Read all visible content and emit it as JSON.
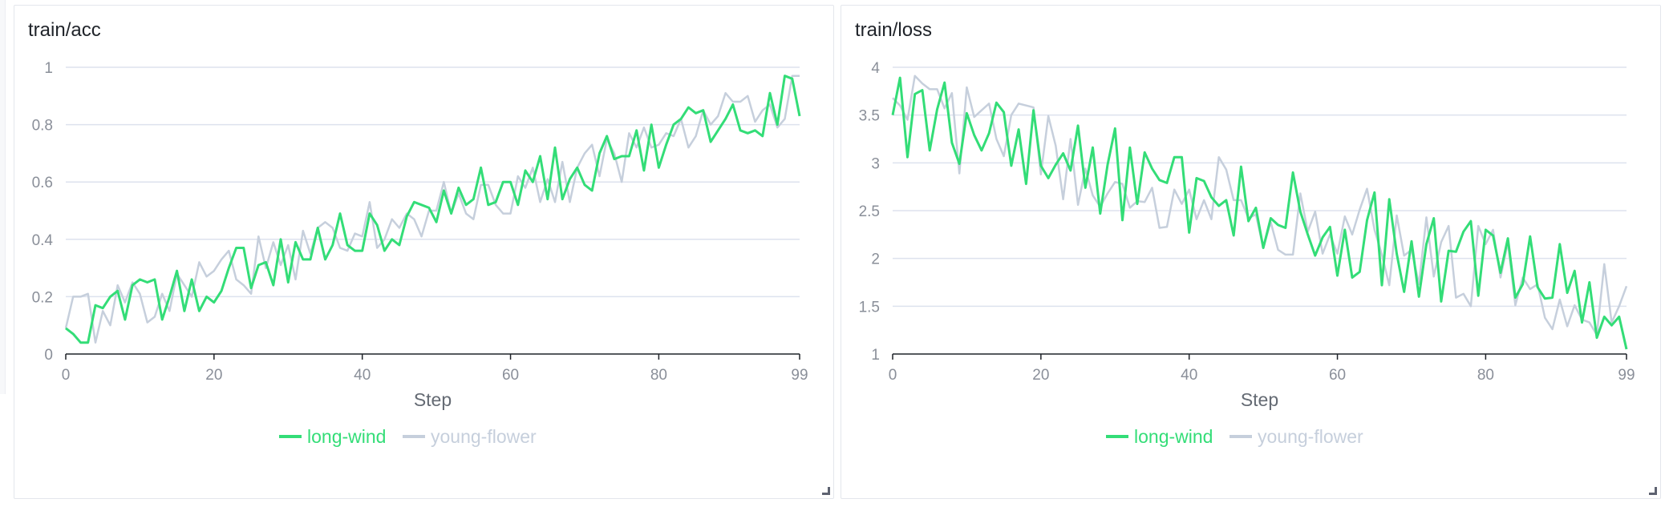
{
  "colors": {
    "long_wind": "#33dd77",
    "young_flower": "#c6cfdc",
    "grid": "#dde2ee",
    "axis": "#1f2329"
  },
  "chart_data": [
    {
      "type": "line",
      "title": "train/acc",
      "xlabel": "Step",
      "xlim": [
        0,
        99
      ],
      "ylim": [
        0,
        1
      ],
      "x_ticks": [
        0,
        20,
        40,
        60,
        80,
        99
      ],
      "y_ticks": [
        0,
        0.2,
        0.4,
        0.6,
        0.8,
        1
      ],
      "grid": true,
      "legend": "bottom-center",
      "series": [
        {
          "name": "long-wind",
          "color": "#33dd77",
          "values": [
            0.09,
            0.07,
            0.04,
            0.04,
            0.17,
            0.16,
            0.2,
            0.22,
            0.12,
            0.24,
            0.26,
            0.25,
            0.26,
            0.12,
            0.2,
            0.29,
            0.15,
            0.26,
            0.15,
            0.2,
            0.18,
            0.22,
            0.3,
            0.37,
            0.37,
            0.23,
            0.31,
            0.32,
            0.24,
            0.4,
            0.25,
            0.39,
            0.33,
            0.33,
            0.44,
            0.33,
            0.38,
            0.49,
            0.38,
            0.36,
            0.36,
            0.49,
            0.45,
            0.36,
            0.4,
            0.38,
            0.48,
            0.53,
            0.52,
            0.51,
            0.46,
            0.57,
            0.49,
            0.58,
            0.52,
            0.54,
            0.65,
            0.52,
            0.53,
            0.6,
            0.6,
            0.52,
            0.64,
            0.6,
            0.69,
            0.54,
            0.72,
            0.54,
            0.61,
            0.65,
            0.59,
            0.57,
            0.7,
            0.76,
            0.68,
            0.69,
            0.69,
            0.78,
            0.64,
            0.8,
            0.65,
            0.73,
            0.8,
            0.82,
            0.86,
            0.84,
            0.85,
            0.74,
            0.78,
            0.82,
            0.87,
            0.78,
            0.77,
            0.78,
            0.76,
            0.91,
            0.8,
            0.97,
            0.96,
            0.83
          ]
        },
        {
          "name": "young-flower",
          "color": "#c6cfdc",
          "values": [
            0.09,
            0.2,
            0.2,
            0.21,
            0.04,
            0.15,
            0.1,
            0.24,
            0.18,
            0.25,
            0.21,
            0.11,
            0.13,
            0.21,
            0.15,
            0.28,
            0.24,
            0.2,
            0.32,
            0.27,
            0.29,
            0.33,
            0.36,
            0.26,
            0.24,
            0.21,
            0.41,
            0.3,
            0.39,
            0.31,
            0.38,
            0.26,
            0.43,
            0.35,
            0.44,
            0.46,
            0.44,
            0.37,
            0.36,
            0.42,
            0.41,
            0.53,
            0.37,
            0.4,
            0.47,
            0.44,
            0.49,
            0.47,
            0.41,
            0.5,
            0.5,
            0.6,
            0.49,
            0.56,
            0.49,
            0.47,
            0.59,
            0.59,
            0.52,
            0.49,
            0.49,
            0.62,
            0.58,
            0.65,
            0.53,
            0.61,
            0.53,
            0.67,
            0.53,
            0.65,
            0.7,
            0.73,
            0.62,
            0.75,
            0.7,
            0.6,
            0.77,
            0.72,
            0.79,
            0.72,
            0.73,
            0.77,
            0.76,
            0.82,
            0.72,
            0.76,
            0.85,
            0.8,
            0.83,
            0.91,
            0.88,
            0.88,
            0.9,
            0.81,
            0.85,
            0.87,
            0.79,
            0.82,
            0.97,
            0.97
          ]
        }
      ]
    },
    {
      "type": "line",
      "title": "train/loss",
      "xlabel": "Step",
      "xlim": [
        0,
        99
      ],
      "ylim": [
        1,
        4
      ],
      "x_ticks": [
        0,
        20,
        40,
        60,
        80,
        99
      ],
      "y_ticks": [
        1,
        1.5,
        2,
        2.5,
        3,
        3.5,
        4
      ],
      "grid": true,
      "legend": "bottom-center",
      "series": [
        {
          "name": "long-wind",
          "color": "#33dd77",
          "values": [
            3.5,
            3.89,
            3.06,
            3.72,
            3.76,
            3.13,
            3.56,
            3.84,
            3.21,
            2.99,
            3.52,
            3.29,
            3.13,
            3.31,
            3.63,
            3.53,
            2.97,
            3.35,
            2.78,
            3.55,
            2.97,
            2.84,
            2.98,
            3.1,
            2.92,
            3.39,
            2.74,
            3.16,
            2.47,
            2.98,
            3.36,
            2.4,
            3.16,
            2.57,
            3.11,
            2.94,
            2.82,
            2.79,
            3.06,
            3.06,
            2.27,
            2.84,
            2.81,
            2.64,
            2.55,
            2.61,
            2.24,
            2.96,
            2.39,
            2.53,
            2.11,
            2.42,
            2.35,
            2.32,
            2.9,
            2.49,
            2.25,
            2.03,
            2.22,
            2.33,
            1.82,
            2.3,
            1.8,
            1.86,
            2.4,
            2.69,
            1.72,
            2.62,
            2.05,
            1.65,
            2.18,
            1.6,
            2.15,
            2.42,
            1.55,
            2.08,
            2.07,
            2.28,
            2.39,
            1.61,
            2.3,
            2.24,
            1.85,
            2.21,
            1.59,
            1.73,
            2.23,
            1.7,
            1.58,
            1.59,
            2.15,
            1.64,
            1.87,
            1.33,
            1.75,
            1.17,
            1.39,
            1.3,
            1.39,
            1.05
          ]
        },
        {
          "name": "young-flower",
          "color": "#c6cfdc",
          "values": [
            3.68,
            3.6,
            3.45,
            3.91,
            3.83,
            3.77,
            3.77,
            3.57,
            3.73,
            2.89,
            3.79,
            3.48,
            3.55,
            3.62,
            3.25,
            3.07,
            3.5,
            3.62,
            3.6,
            3.58,
            2.88,
            3.49,
            3.18,
            2.62,
            3.25,
            2.56,
            2.94,
            2.66,
            2.54,
            2.68,
            2.8,
            2.78,
            2.53,
            2.6,
            2.59,
            2.74,
            2.32,
            2.33,
            2.72,
            2.57,
            2.72,
            2.41,
            2.61,
            2.41,
            3.06,
            2.93,
            2.61,
            2.61,
            2.42,
            2.46,
            2.11,
            2.38,
            2.09,
            2.04,
            2.04,
            2.68,
            2.28,
            2.49,
            2.05,
            2.25,
            2.05,
            2.44,
            2.25,
            2.51,
            2.73,
            2.3,
            2.04,
            1.72,
            2.45,
            2.03,
            2.09,
            1.73,
            2.43,
            1.81,
            2.17,
            2.34,
            1.59,
            1.63,
            1.5,
            2.34,
            2.15,
            2.3,
            1.8,
            2.17,
            1.51,
            1.8,
            1.68,
            1.73,
            1.38,
            1.26,
            1.57,
            1.29,
            1.51,
            1.36,
            1.33,
            1.2,
            1.94,
            1.33,
            1.5,
            1.71
          ]
        }
      ]
    }
  ]
}
